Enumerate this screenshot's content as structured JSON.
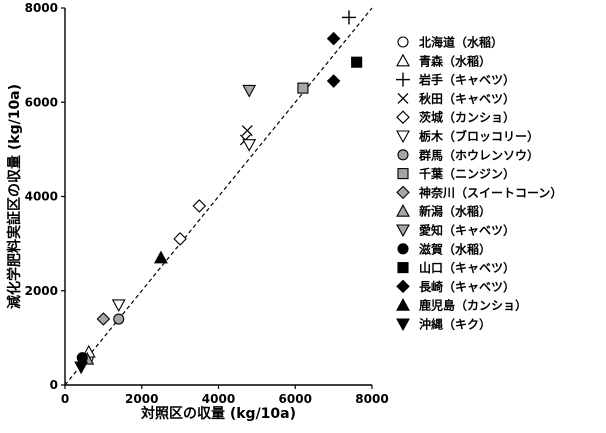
{
  "chart_data": {
    "type": "scatter",
    "xlabel": "対照区の収量 (kg/10a)",
    "ylabel": "減化学肥料実証区の収量 (kg/10a)",
    "xlim": [
      0,
      8000
    ],
    "ylim": [
      0,
      8000
    ],
    "x_ticks": [
      "0",
      "2000",
      "4000",
      "6000",
      "8000"
    ],
    "y_ticks": [
      "0",
      "2000",
      "4000",
      "6000",
      "8000"
    ],
    "grid": false,
    "legend_position": "right",
    "reference_line": {
      "style": "dashed",
      "from": [
        0,
        0
      ],
      "to": [
        8000,
        8000
      ]
    },
    "series": [
      {
        "name": "北海道（水稲）",
        "marker": "circle-open",
        "points": [
          [
            600,
            580
          ]
        ]
      },
      {
        "name": "青森（水稲）",
        "marker": "triangle-up-open",
        "points": [
          [
            620,
            700
          ]
        ]
      },
      {
        "name": "岩手（キャベツ）",
        "marker": "plus",
        "points": [
          [
            7400,
            7800
          ]
        ]
      },
      {
        "name": "秋田（キャベツ）",
        "marker": "x",
        "points": [
          [
            4700,
            5200
          ],
          [
            4750,
            5400
          ]
        ]
      },
      {
        "name": "茨城（カンショ）",
        "marker": "diamond-open",
        "points": [
          [
            3000,
            3100
          ],
          [
            3500,
            3800
          ]
        ]
      },
      {
        "name": "栃木（ブロッコリー）",
        "marker": "triangle-down-open",
        "points": [
          [
            1400,
            1700
          ],
          [
            4800,
            5100
          ]
        ]
      },
      {
        "name": "群馬（ホウレンソウ）",
        "marker": "circle-gray",
        "points": [
          [
            1400,
            1400
          ]
        ]
      },
      {
        "name": "千葉（ニンジン）",
        "marker": "square-gray",
        "points": [
          [
            6200,
            6300
          ]
        ]
      },
      {
        "name": "神奈川（スイートコーン）",
        "marker": "diamond-gray",
        "points": [
          [
            1000,
            1400
          ]
        ]
      },
      {
        "name": "新潟（水稲）",
        "marker": "triangle-up-gray",
        "points": [
          [
            580,
            550
          ]
        ]
      },
      {
        "name": "愛知（キャベツ）",
        "marker": "triangle-down-gray",
        "points": [
          [
            4800,
            6250
          ]
        ]
      },
      {
        "name": "滋賀（水稲）",
        "marker": "circle-black",
        "points": [
          [
            450,
            580
          ]
        ]
      },
      {
        "name": "山口（キャベツ）",
        "marker": "square-black",
        "points": [
          [
            7600,
            6850
          ]
        ]
      },
      {
        "name": "長崎（キャベツ）",
        "marker": "diamond-black",
        "points": [
          [
            7000,
            7350
          ],
          [
            7000,
            6450
          ]
        ]
      },
      {
        "name": "鹿児島（カンショ）",
        "marker": "triangle-up-black",
        "points": [
          [
            2500,
            2700
          ]
        ]
      },
      {
        "name": "沖縄（キク）",
        "marker": "triangle-down-black",
        "points": [
          [
            420,
            380
          ]
        ]
      }
    ]
  }
}
